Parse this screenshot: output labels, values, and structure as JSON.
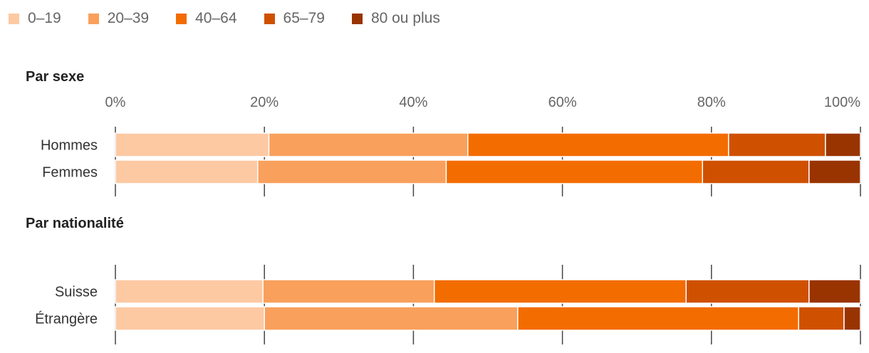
{
  "chart_data": {
    "type": "bar",
    "orientation": "horizontal",
    "stacked": true,
    "legend_position": "top-left",
    "grid": true,
    "xlim": [
      0,
      100
    ],
    "x_ticks": [
      "0%",
      "20%",
      "40%",
      "60%",
      "80%",
      "100%"
    ],
    "series": [
      {
        "name": "0–19",
        "color": "#fdc9a3"
      },
      {
        "name": "20–39",
        "color": "#f9a05c"
      },
      {
        "name": "40–64",
        "color": "#f36c00"
      },
      {
        "name": "65–79",
        "color": "#cf5100"
      },
      {
        "name": "80 ou plus",
        "color": "#993400"
      }
    ],
    "groups": [
      {
        "title": "Par sexe",
        "rows": [
          {
            "label": "Hommes",
            "values": [
              20.6,
              26.7,
              35.0,
              13.0,
              4.7
            ]
          },
          {
            "label": "Femmes",
            "values": [
              19.1,
              25.3,
              34.4,
              14.3,
              6.9
            ]
          }
        ]
      },
      {
        "title": "Par nationalité",
        "rows": [
          {
            "label": "Suisse",
            "values": [
              19.8,
              23.0,
              33.8,
              16.5,
              6.9
            ]
          },
          {
            "label": "Étrangère",
            "values": [
              20.0,
              34.0,
              37.7,
              6.1,
              2.2
            ]
          }
        ]
      }
    ]
  }
}
